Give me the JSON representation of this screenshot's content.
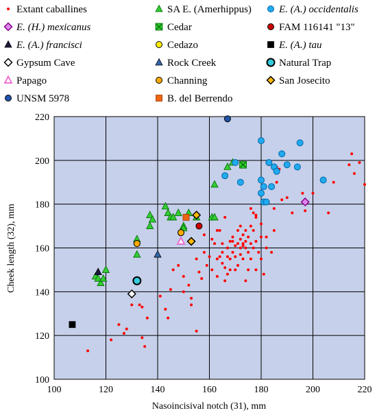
{
  "chart_data": {
    "type": "scatter",
    "xlabel": "Nasoincisival notch (31), mm",
    "ylabel": "Cheek length (32), mm",
    "xlim": [
      100,
      220
    ],
    "ylim": [
      100,
      220
    ],
    "xticks": [
      100,
      120,
      140,
      160,
      180,
      200,
      220
    ],
    "yticks": [
      100,
      120,
      140,
      160,
      180,
      200,
      220
    ],
    "grid": true,
    "legend_position": "top",
    "series": [
      {
        "name": "Extant caballines",
        "marker": "circle-small",
        "color": "#ff0000",
        "edge": "#ff0000",
        "points": [
          [
            113,
            113
          ],
          [
            122,
            118
          ],
          [
            125,
            125
          ],
          [
            127,
            121
          ],
          [
            128,
            123
          ],
          [
            130,
            134
          ],
          [
            133,
            134
          ],
          [
            134,
            133
          ],
          [
            134,
            119
          ],
          [
            135,
            115
          ],
          [
            136,
            128
          ],
          [
            141,
            138
          ],
          [
            143,
            132
          ],
          [
            144,
            128
          ],
          [
            145,
            141
          ],
          [
            146,
            150
          ],
          [
            148,
            152
          ],
          [
            150,
            140
          ],
          [
            150,
            147
          ],
          [
            152,
            143
          ],
          [
            153,
            134
          ],
          [
            153,
            137
          ],
          [
            155,
            122
          ],
          [
            156,
            149
          ],
          [
            155,
            155
          ],
          [
            157,
            146
          ],
          [
            158,
            158
          ],
          [
            158,
            166
          ],
          [
            159,
            152
          ],
          [
            160,
            156
          ],
          [
            161,
            150
          ],
          [
            162,
            162
          ],
          [
            163,
            147
          ],
          [
            163,
            155
          ],
          [
            164,
            156
          ],
          [
            164,
            168
          ],
          [
            165,
            153
          ],
          [
            165,
            158
          ],
          [
            166,
            151
          ],
          [
            166,
            145
          ],
          [
            166,
            174
          ],
          [
            167,
            148
          ],
          [
            167,
            156
          ],
          [
            167,
            160
          ],
          [
            168,
            155
          ],
          [
            168,
            163
          ],
          [
            168,
            150
          ],
          [
            169,
            158
          ],
          [
            169,
            163
          ],
          [
            169,
            165
          ],
          [
            170,
            156
          ],
          [
            170,
            150
          ],
          [
            170,
            161
          ],
          [
            171,
            162
          ],
          [
            171,
            168
          ],
          [
            171,
            152
          ],
          [
            172,
            160
          ],
          [
            172,
            157
          ],
          [
            172,
            164
          ],
          [
            172,
            170
          ],
          [
            173,
            162
          ],
          [
            173,
            155
          ],
          [
            173,
            166
          ],
          [
            173,
            161
          ],
          [
            174,
            160
          ],
          [
            174,
            168
          ],
          [
            174,
            145
          ],
          [
            174,
            163
          ],
          [
            175,
            150
          ],
          [
            175,
            158
          ],
          [
            175,
            165
          ],
          [
            176,
            162
          ],
          [
            176,
            155
          ],
          [
            176,
            170
          ],
          [
            176,
            178
          ],
          [
            177,
            160
          ],
          [
            177,
            168
          ],
          [
            178,
            150
          ],
          [
            178,
            163
          ],
          [
            178,
            175
          ],
          [
            178,
            174
          ],
          [
            179,
            158
          ],
          [
            180,
            155
          ],
          [
            180,
            165
          ],
          [
            180,
            171
          ],
          [
            181,
            148
          ],
          [
            182,
            160
          ],
          [
            182,
            165
          ],
          [
            184,
            158
          ],
          [
            185,
            168
          ],
          [
            185,
            178
          ],
          [
            186,
            190
          ],
          [
            187,
            196
          ],
          [
            188,
            182
          ],
          [
            190,
            183
          ],
          [
            192,
            176
          ],
          [
            196,
            185
          ],
          [
            197,
            177
          ],
          [
            200,
            185
          ],
          [
            206,
            176
          ],
          [
            208,
            190
          ],
          [
            214,
            198
          ],
          [
            215,
            203
          ],
          [
            216,
            194
          ],
          [
            218,
            199
          ],
          [
            220,
            189
          ],
          [
            183,
            198
          ],
          [
            186,
            197
          ],
          [
            163,
            168
          ],
          [
            161,
            164
          ],
          [
            165,
            162
          ],
          [
            177,
            176
          ]
        ]
      },
      {
        "name": "SA E. (Amerhippus)",
        "marker": "triangle",
        "color": "#33cc33",
        "edge": "#006600",
        "points": [
          [
            116,
            147
          ],
          [
            117,
            146
          ],
          [
            118,
            144
          ],
          [
            119,
            146
          ],
          [
            120,
            150
          ],
          [
            132,
            157
          ],
          [
            132,
            164
          ],
          [
            137,
            170
          ],
          [
            137,
            175
          ],
          [
            138,
            173
          ],
          [
            143,
            179
          ],
          [
            144,
            176
          ],
          [
            145,
            174
          ],
          [
            146,
            174
          ],
          [
            148,
            176
          ],
          [
            150,
            170
          ],
          [
            150,
            169
          ],
          [
            152,
            176
          ],
          [
            155,
            174
          ],
          [
            161,
            174
          ],
          [
            162,
            174
          ],
          [
            162,
            189
          ],
          [
            167,
            197
          ],
          [
            169,
            199
          ],
          [
            173,
            198
          ]
        ]
      },
      {
        "name": "E. (A.) occidentalis",
        "label_normal": "",
        "label_italic": "E. (A.) occidentalis",
        "marker": "circle",
        "color": "#22aaee",
        "edge": "#0066aa",
        "points": [
          [
            166,
            193
          ],
          [
            170,
            199
          ],
          [
            172,
            190
          ],
          [
            180,
            209
          ],
          [
            180,
            191
          ],
          [
            180,
            185
          ],
          [
            181,
            181
          ],
          [
            183,
            199
          ],
          [
            184,
            188
          ],
          [
            185,
            197
          ],
          [
            186,
            195
          ],
          [
            188,
            203
          ],
          [
            190,
            198
          ],
          [
            194,
            197
          ],
          [
            195,
            208
          ],
          [
            204,
            191
          ],
          [
            181,
            188
          ],
          [
            182,
            181
          ]
        ]
      },
      {
        "name": "E. (H.) mexicanus",
        "marker": "diamond",
        "color": "#dd88ee",
        "edge": "#880088",
        "points": [
          [
            197,
            181
          ]
        ]
      },
      {
        "name": "Cedar",
        "marker": "square-x",
        "color": "#33cc33",
        "edge": "#006600",
        "points": [
          [
            173,
            198
          ]
        ]
      },
      {
        "name": "FAM 116141 \"13\"",
        "marker": "circle",
        "color": "#cc0000",
        "edge": "#000000",
        "points": [
          [
            156,
            170
          ]
        ]
      },
      {
        "name": "E. (A.) francisci",
        "marker": "triangle",
        "color": "#1a1a40",
        "edge": "#000000",
        "points": [
          [
            117,
            149
          ]
        ]
      },
      {
        "name": "Cedazo",
        "marker": "circle",
        "color": "#ffee00",
        "edge": "#000000",
        "points": [
          [
            132,
            162
          ],
          [
            149,
            167
          ]
        ]
      },
      {
        "name": "E. (A.) tau",
        "marker": "square",
        "color": "#000000",
        "edge": "#000000",
        "points": [
          [
            107,
            125
          ]
        ]
      },
      {
        "name": "Gypsum Cave",
        "marker": "diamond",
        "color": "#ffffff",
        "edge": "#000000",
        "points": [
          [
            130,
            139
          ]
        ]
      },
      {
        "name": "Rock Creek",
        "marker": "triangle",
        "color": "#3366aa",
        "edge": "#000000",
        "points": [
          [
            140,
            157
          ]
        ]
      },
      {
        "name": "Natural Trap",
        "marker": "circle-large",
        "color": "#33ccdd",
        "edge": "#000000",
        "points": [
          [
            132,
            145
          ]
        ]
      },
      {
        "name": "Papago",
        "marker": "triangle-open",
        "color": "#ffffff",
        "edge": "#ee66cc",
        "points": [
          [
            149,
            163
          ]
        ]
      },
      {
        "name": "Channing",
        "marker": "circle",
        "color": "#ffaa00",
        "edge": "#000000",
        "points": [
          [
            132,
            162
          ],
          [
            149,
            167
          ]
        ]
      },
      {
        "name": "San Josecito",
        "marker": "diamond",
        "color": "#ffbb00",
        "edge": "#000000",
        "points": [
          [
            153,
            163
          ],
          [
            155,
            175
          ]
        ]
      },
      {
        "name": "UNSM 5978",
        "marker": "circle",
        "color": "#2255aa",
        "edge": "#000000",
        "points": [
          [
            167,
            219
          ]
        ]
      },
      {
        "name": "B. del Berrendo",
        "marker": "square",
        "color": "#ee6611",
        "edge": "#993300",
        "points": [
          [
            151,
            174
          ]
        ]
      }
    ]
  },
  "legend": [
    {
      "key": "extant",
      "normal": "Extant caballines",
      "italic": ""
    },
    {
      "key": "sae",
      "normal": "SA E. (Amerhippus)",
      "italic": ""
    },
    {
      "key": "occ",
      "normal": "",
      "italic": "E. (A.) occidentalis"
    },
    {
      "key": "mex",
      "normal": "",
      "italic": "E. (H.) mexicanus"
    },
    {
      "key": "cedar",
      "normal": "Cedar",
      "italic": ""
    },
    {
      "key": "fam",
      "normal": "FAM 116141 \"13\"",
      "italic": ""
    },
    {
      "key": "fra",
      "normal": "",
      "italic": "E. (A.) francisci"
    },
    {
      "key": "cedazo",
      "normal": "Cedazo",
      "italic": ""
    },
    {
      "key": "tau",
      "normal": "",
      "italic": "E. (A.) tau"
    },
    {
      "key": "gyp",
      "normal": "Gypsum Cave",
      "italic": ""
    },
    {
      "key": "rock",
      "normal": "Rock Creek",
      "italic": ""
    },
    {
      "key": "trap",
      "normal": "Natural Trap",
      "italic": ""
    },
    {
      "key": "pap",
      "normal": "Papago",
      "italic": ""
    },
    {
      "key": "chan",
      "normal": "Channing",
      "italic": ""
    },
    {
      "key": "sanj",
      "normal": "San Josecito",
      "italic": ""
    },
    {
      "key": "unsm",
      "normal": "UNSM 5978",
      "italic": ""
    },
    {
      "key": "berr",
      "normal": "B. del Berrendo",
      "italic": ""
    }
  ]
}
